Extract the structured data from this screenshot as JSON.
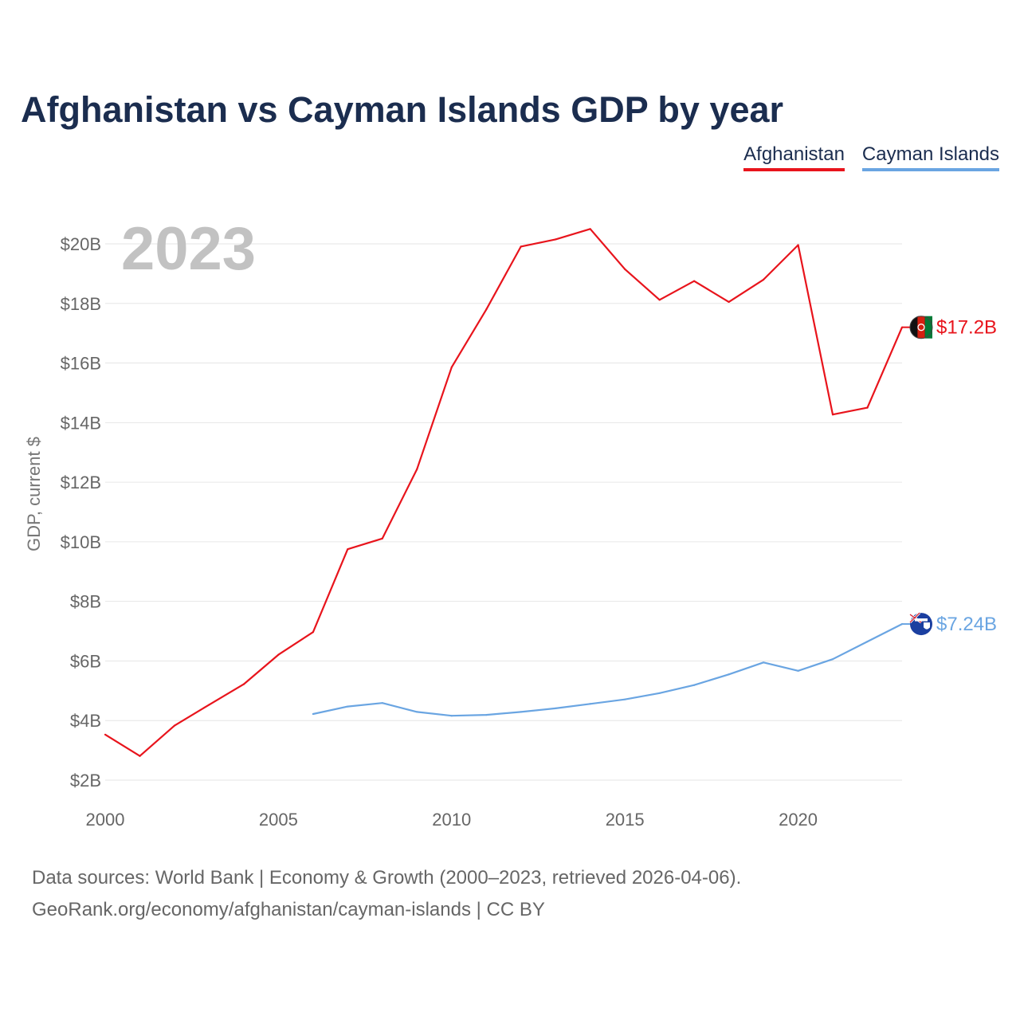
{
  "chart_data": {
    "type": "line",
    "title": "Afghanistan vs Cayman Islands GDP by year",
    "ylabel": "GDP, current $",
    "xlabel": "",
    "year_overlay": "2023",
    "x_ticks": [
      "2000",
      "2005",
      "2010",
      "2015",
      "2020"
    ],
    "x_tick_values": [
      2000,
      2005,
      2010,
      2015,
      2020
    ],
    "xlim": [
      2000,
      2023
    ],
    "y_ticks": [
      "$2B",
      "$4B",
      "$6B",
      "$8B",
      "$10B",
      "$12B",
      "$14B",
      "$16B",
      "$18B",
      "$20B"
    ],
    "y_tick_values": [
      2,
      4,
      6,
      8,
      10,
      12,
      14,
      16,
      18,
      20
    ],
    "ylim": [
      2,
      20
    ],
    "legend_position": "top-right",
    "series": [
      {
        "name": "Afghanistan",
        "color": "#e8141c",
        "end_label": "$17.2B",
        "flag_icon": "afghanistan-flag-icon",
        "x": [
          2000,
          2001,
          2002,
          2003,
          2004,
          2005,
          2006,
          2007,
          2008,
          2009,
          2010,
          2011,
          2012,
          2013,
          2014,
          2015,
          2016,
          2017,
          2018,
          2019,
          2020,
          2021,
          2022,
          2023
        ],
        "values": [
          3.53,
          2.81,
          3.83,
          4.53,
          5.22,
          6.21,
          6.97,
          9.75,
          10.11,
          12.44,
          15.86,
          17.8,
          19.91,
          20.15,
          20.5,
          19.15,
          18.12,
          18.75,
          18.05,
          18.8,
          19.96,
          14.27,
          14.5,
          17.2
        ]
      },
      {
        "name": "Cayman Islands",
        "color": "#6aa5e2",
        "end_label": "$7.24B",
        "flag_icon": "cayman-islands-flag-icon",
        "x": [
          2006,
          2007,
          2008,
          2009,
          2010,
          2011,
          2012,
          2013,
          2014,
          2015,
          2016,
          2017,
          2018,
          2019,
          2020,
          2021,
          2022,
          2023
        ],
        "values": [
          4.22,
          4.47,
          4.59,
          4.29,
          4.16,
          4.19,
          4.29,
          4.41,
          4.56,
          4.71,
          4.92,
          5.19,
          5.55,
          5.95,
          5.67,
          6.06,
          6.65,
          7.24
        ]
      }
    ],
    "source_line1": "Data sources: World Bank | Economy & Growth (2000–2023, retrieved 2026-04-06).",
    "source_line2": "GeoRank.org/economy/afghanistan/cayman-islands | CC BY"
  }
}
